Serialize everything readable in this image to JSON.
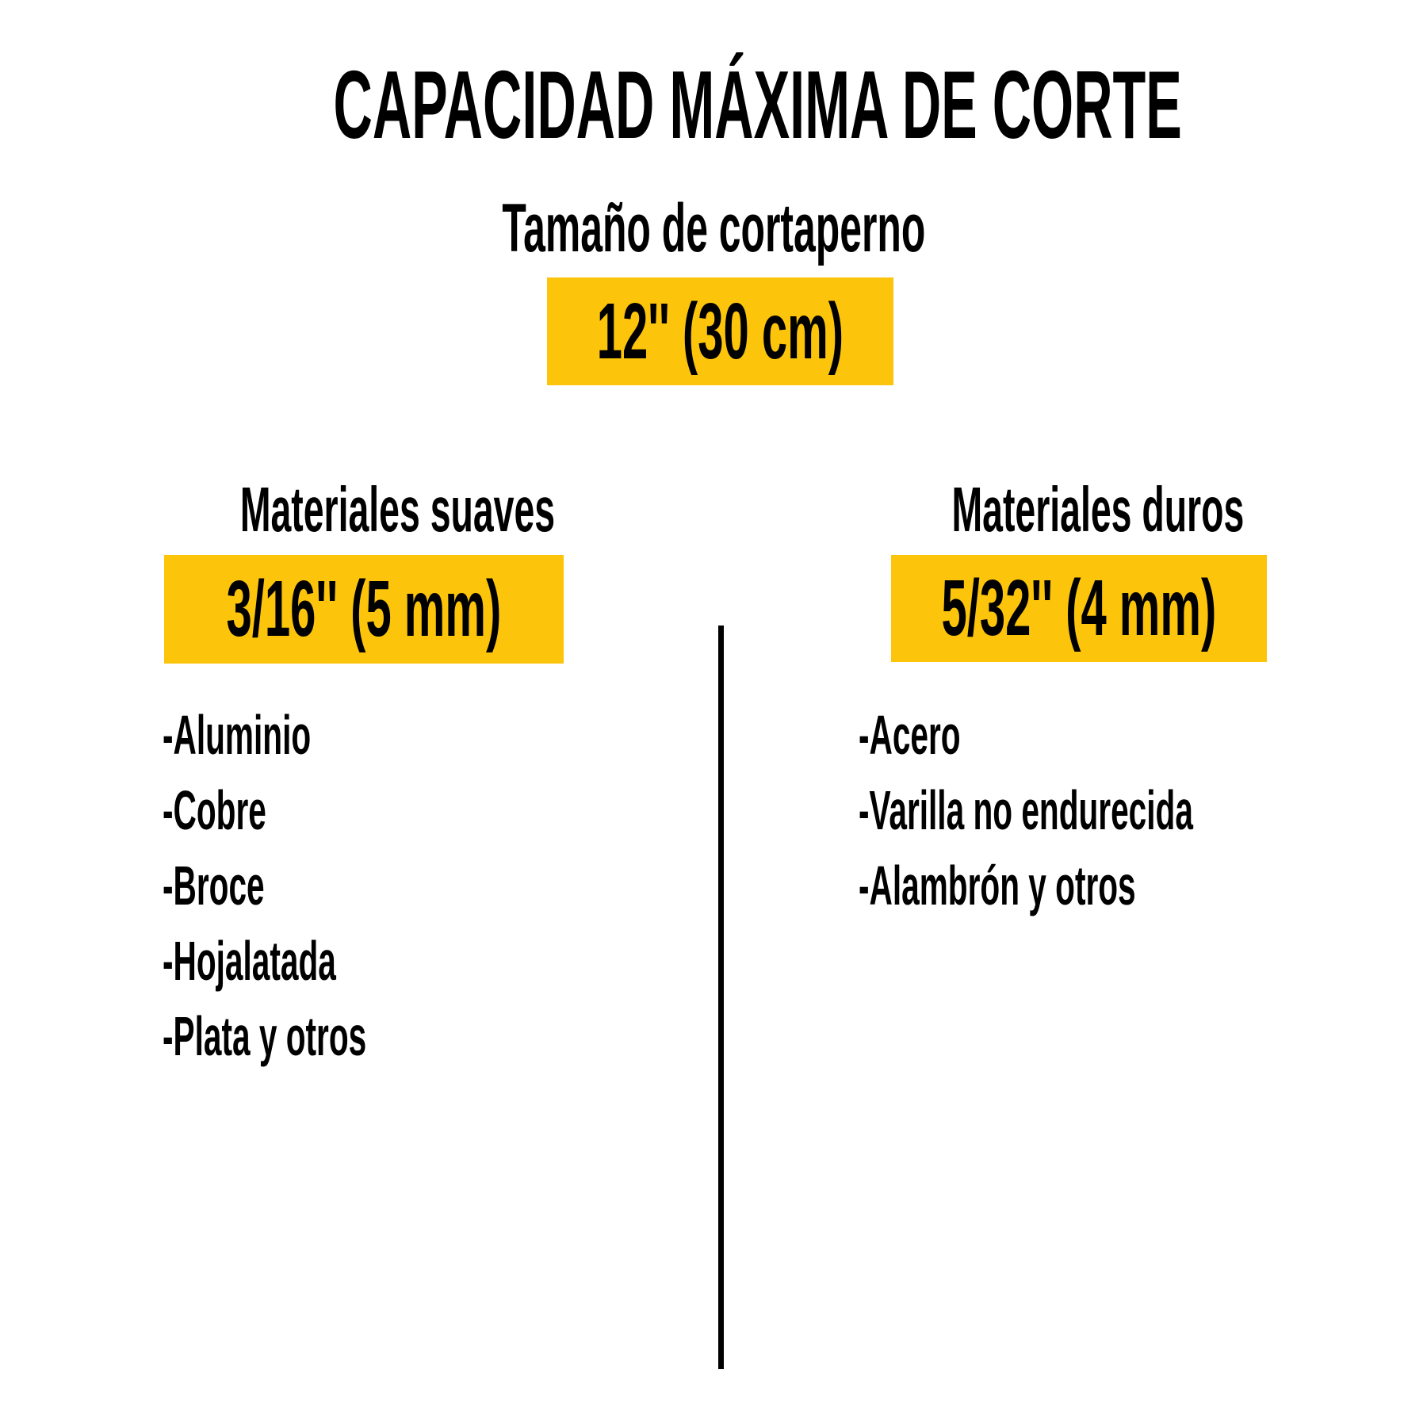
{
  "title": "CAPACIDAD MÁXIMA DE CORTE",
  "subtitle": "Tamaño de cortaperno",
  "cutter_size_label": "12'' (30 cm)",
  "colors": {
    "highlight": "#FCC40A",
    "text": "#000000",
    "background": "#FFFFFF"
  },
  "columns": [
    {
      "header": "Materiales suaves",
      "capacity": "3/16'' (5 mm)",
      "items": [
        "-Aluminio",
        "-Cobre",
        "-Broce",
        "-Hojalatada",
        "-Plata y otros"
      ]
    },
    {
      "header": "Materiales duros",
      "capacity": "5/32'' (4 mm)",
      "items": [
        "-Acero",
        "-Varilla no endurecida",
        "-Alambrón y otros"
      ]
    }
  ]
}
